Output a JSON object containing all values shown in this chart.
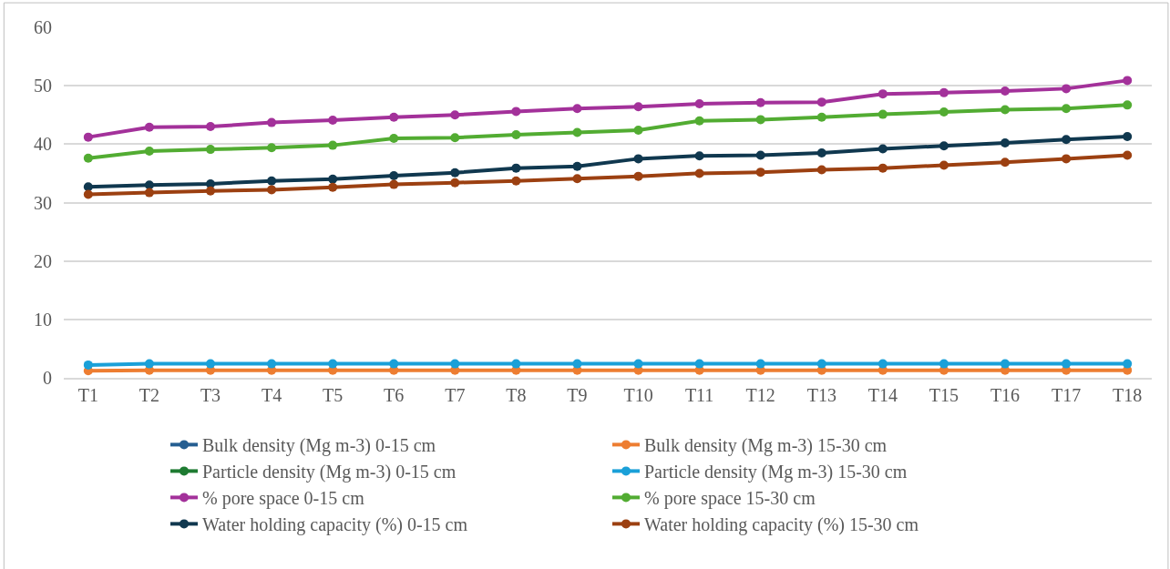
{
  "chart_data": {
    "type": "line",
    "categories": [
      "T1",
      "T2",
      "T3",
      "T4",
      "T5",
      "T6",
      "T7",
      "T8",
      "T9",
      "T10",
      "T11",
      "T12",
      "T13",
      "T14",
      "T15",
      "T16",
      "T17",
      "T18"
    ],
    "series": [
      {
        "name": "Bulk density (Mg m-3) 0-15 cm",
        "color": "#255e91",
        "values": [
          null,
          null,
          null,
          null,
          null,
          null,
          null,
          null,
          null,
          null,
          null,
          null,
          null,
          null,
          null,
          null,
          null,
          null
        ]
      },
      {
        "name": "Bulk density (Mg m-3) 15-30 cm",
        "color": "#ed7d31",
        "values": [
          1.2,
          1.3,
          1.3,
          1.3,
          1.3,
          1.3,
          1.3,
          1.3,
          1.3,
          1.3,
          1.3,
          1.3,
          1.3,
          1.3,
          1.3,
          1.3,
          1.3,
          1.3
        ]
      },
      {
        "name": "Particle density (Mg m-3) 0-15 cm",
        "color": "#1e7b32",
        "values": [
          null,
          null,
          null,
          null,
          null,
          null,
          null,
          null,
          null,
          null,
          null,
          null,
          null,
          null,
          null,
          null,
          null,
          null
        ]
      },
      {
        "name": "Particle density (Mg m-3) 15-30 cm",
        "color": "#1aa0d8",
        "values": [
          2.2,
          2.4,
          2.4,
          2.4,
          2.4,
          2.4,
          2.4,
          2.4,
          2.4,
          2.4,
          2.4,
          2.4,
          2.4,
          2.4,
          2.4,
          2.4,
          2.4,
          2.4
        ]
      },
      {
        "name": "% pore space 0-15 cm",
        "color": "#a3319a",
        "values": [
          41.2,
          42.9,
          43.0,
          43.7,
          44.1,
          44.6,
          45.0,
          45.6,
          46.1,
          46.4,
          46.9,
          47.1,
          47.2,
          48.6,
          48.8,
          49.1,
          49.5,
          50.9
        ]
      },
      {
        "name": "% pore space 15-30 cm",
        "color": "#52ac32",
        "values": [
          37.6,
          38.8,
          39.1,
          39.4,
          39.8,
          41.0,
          41.1,
          41.6,
          42.0,
          42.4,
          44.0,
          44.2,
          44.6,
          45.1,
          45.5,
          45.9,
          46.1,
          46.7
        ]
      },
      {
        "name": "Water holding capacity (%) 0-15 cm",
        "color": "#10384f",
        "values": [
          32.7,
          33.0,
          33.2,
          33.7,
          34.0,
          34.6,
          35.1,
          35.9,
          36.2,
          37.5,
          38.0,
          38.1,
          38.5,
          39.2,
          39.7,
          40.2,
          40.8,
          41.3
        ]
      },
      {
        "name": "Water holding capacity (%) 15-30 cm",
        "color": "#9c4011",
        "values": [
          31.4,
          31.7,
          32.0,
          32.2,
          32.6,
          33.1,
          33.4,
          33.7,
          34.1,
          34.5,
          35.0,
          35.2,
          35.6,
          35.9,
          36.4,
          36.9,
          37.5,
          38.1
        ]
      }
    ],
    "ylim": [
      0,
      60
    ],
    "yticks": [
      0,
      10,
      20,
      30,
      40,
      50,
      60
    ],
    "grid": "y",
    "legend": "bottom",
    "marker": "circle",
    "line_style": "solid"
  }
}
